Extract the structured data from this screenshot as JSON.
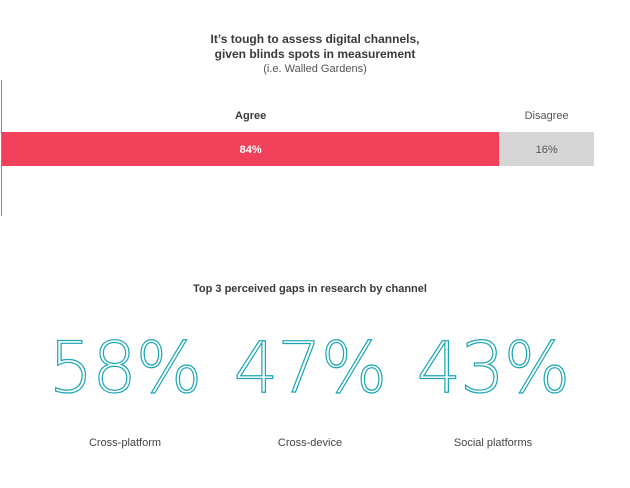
{
  "chart_data": [
    {
      "type": "bar",
      "title": "It’s tough to assess digital channels,",
      "title_line2": "given blinds spots in measurement",
      "subtitle": "(i.e. Walled Gardens)",
      "orientation": "horizontal-stacked",
      "series": [
        {
          "name": "Agree",
          "value": 84,
          "label": "84%",
          "color": "#f1405a"
        },
        {
          "name": "Disagree",
          "value": 16,
          "label": "16%",
          "color": "#d6d6d6"
        }
      ]
    },
    {
      "type": "table",
      "title": "Top 3 perceived gaps in research by channel",
      "items": [
        {
          "value": "58%",
          "label": "Cross-platform"
        },
        {
          "value": "47%",
          "label": "Cross-device"
        },
        {
          "value": "43%",
          "label": "Social platforms"
        }
      ],
      "accent_color": "#1aa6b4"
    }
  ]
}
